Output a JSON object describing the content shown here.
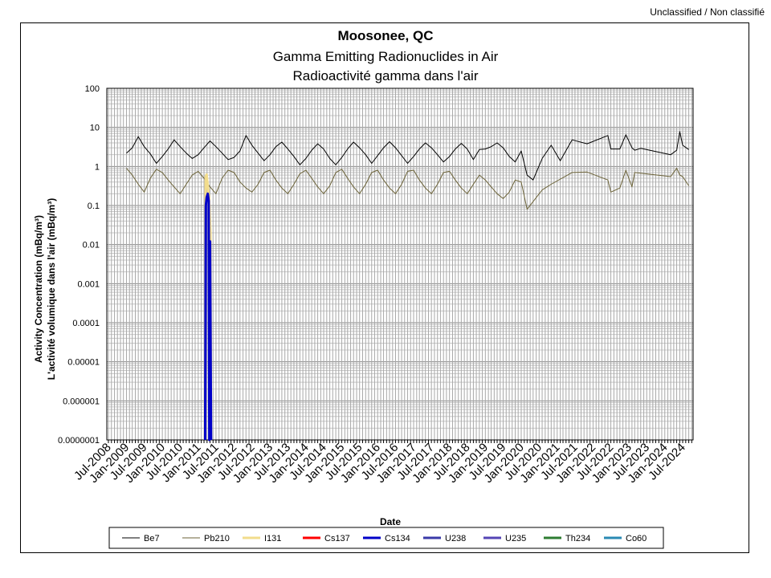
{
  "header": {
    "classification": "Unclassified / Non classifié"
  },
  "chart_data": {
    "type": "line",
    "title": "Moosonee, QC",
    "subtitle": [
      "Gamma Emitting Radionuclides in Air",
      "Radioactivité gamma dans l'air"
    ],
    "xlabel": "Date",
    "ylabel": [
      "Activity Concentration  (mBq/m³)",
      "L'activité volumique dans l'air (mBq/m³)"
    ],
    "y_scale": "log",
    "ylim": [
      1e-07,
      100
    ],
    "y_ticks": [
      "0.0000001",
      "0.000001",
      "0.00001",
      "0.0001",
      "0.001",
      "0.01",
      "0.1",
      "1",
      "10",
      "100"
    ],
    "xlim": [
      "2008-06-15",
      "2024-10-15"
    ],
    "x_ticks": [
      "Jul-2008",
      "Jan-2009",
      "Jul-2009",
      "Jan-2010",
      "Jul-2010",
      "Jan-2011",
      "Jul-2011",
      "Jan-2012",
      "Jul-2012",
      "Jan-2013",
      "Jul-2013",
      "Jan-2014",
      "Jul-2014",
      "Jan-2015",
      "Jul-2015",
      "Jan-2016",
      "Jul-2016",
      "Jan-2017",
      "Jul-2017",
      "Jan-2018",
      "Jul-2018",
      "Jan-2019",
      "Jul-2019",
      "Jan-2020",
      "Jul-2020",
      "Jan-2021",
      "Jul-2021",
      "Jan-2022",
      "Jul-2022",
      "Jan-2023",
      "Jul-2023",
      "Jan-2024",
      "Jul-2024"
    ],
    "x_tick_dates": [
      "2008-07-01",
      "2009-01-01",
      "2009-07-01",
      "2010-01-01",
      "2010-07-01",
      "2011-01-01",
      "2011-07-01",
      "2012-01-01",
      "2012-07-01",
      "2013-01-01",
      "2013-07-01",
      "2014-01-01",
      "2014-07-01",
      "2015-01-01",
      "2015-07-01",
      "2016-01-01",
      "2016-07-01",
      "2017-01-01",
      "2017-07-01",
      "2018-01-01",
      "2018-07-01",
      "2019-01-01",
      "2019-07-01",
      "2020-01-01",
      "2020-07-01",
      "2021-01-01",
      "2021-07-01",
      "2022-01-01",
      "2022-07-01",
      "2023-01-01",
      "2023-07-01",
      "2024-01-01",
      "2024-07-01"
    ],
    "grid": true,
    "legend_position": "bottom",
    "series": [
      {
        "name": "Be7",
        "color": "#000000",
        "values": [
          [
            "2009-01-01",
            2.2
          ],
          [
            "2009-03-01",
            3.0
          ],
          [
            "2009-05-01",
            5.8
          ],
          [
            "2009-07-01",
            3.2
          ],
          [
            "2009-09-01",
            2.1
          ],
          [
            "2009-11-01",
            1.2
          ],
          [
            "2010-01-01",
            1.8
          ],
          [
            "2010-03-01",
            2.8
          ],
          [
            "2010-05-01",
            4.8
          ],
          [
            "2010-07-01",
            3.2
          ],
          [
            "2010-09-01",
            2.2
          ],
          [
            "2010-11-01",
            1.6
          ],
          [
            "2011-01-01",
            2.0
          ],
          [
            "2011-03-01",
            3.0
          ],
          [
            "2011-05-01",
            4.5
          ],
          [
            "2011-07-01",
            3.2
          ],
          [
            "2011-09-01",
            2.2
          ],
          [
            "2011-11-01",
            1.5
          ],
          [
            "2012-01-01",
            1.7
          ],
          [
            "2012-03-01",
            2.5
          ],
          [
            "2012-05-01",
            6.2
          ],
          [
            "2012-07-01",
            3.5
          ],
          [
            "2012-09-01",
            2.2
          ],
          [
            "2012-11-01",
            1.4
          ],
          [
            "2013-01-01",
            2.0
          ],
          [
            "2013-03-01",
            3.2
          ],
          [
            "2013-05-01",
            4.2
          ],
          [
            "2013-07-01",
            2.8
          ],
          [
            "2013-09-01",
            1.8
          ],
          [
            "2013-11-01",
            1.1
          ],
          [
            "2014-01-01",
            1.6
          ],
          [
            "2014-03-01",
            2.6
          ],
          [
            "2014-05-01",
            3.8
          ],
          [
            "2014-07-01",
            2.8
          ],
          [
            "2014-09-01",
            1.6
          ],
          [
            "2014-11-01",
            1.1
          ],
          [
            "2015-01-01",
            1.7
          ],
          [
            "2015-03-01",
            2.8
          ],
          [
            "2015-05-01",
            4.2
          ],
          [
            "2015-07-01",
            3.0
          ],
          [
            "2015-09-01",
            2.0
          ],
          [
            "2015-11-01",
            1.2
          ],
          [
            "2016-01-01",
            1.9
          ],
          [
            "2016-03-01",
            3.0
          ],
          [
            "2016-05-01",
            4.3
          ],
          [
            "2016-07-01",
            3.0
          ],
          [
            "2016-09-01",
            1.9
          ],
          [
            "2016-11-01",
            1.2
          ],
          [
            "2017-01-01",
            1.8
          ],
          [
            "2017-03-01",
            2.8
          ],
          [
            "2017-05-01",
            4.0
          ],
          [
            "2017-07-01",
            3.0
          ],
          [
            "2017-09-01",
            2.0
          ],
          [
            "2017-11-01",
            1.3
          ],
          [
            "2018-01-01",
            1.8
          ],
          [
            "2018-03-01",
            2.8
          ],
          [
            "2018-05-01",
            3.9
          ],
          [
            "2018-07-01",
            2.8
          ],
          [
            "2018-09-01",
            1.5
          ],
          [
            "2018-11-01",
            2.7
          ],
          [
            "2019-01-01",
            2.8
          ],
          [
            "2019-03-01",
            3.2
          ],
          [
            "2019-05-01",
            4.0
          ],
          [
            "2019-07-01",
            3.0
          ],
          [
            "2019-09-01",
            1.8
          ],
          [
            "2019-11-01",
            1.3
          ],
          [
            "2020-01-01",
            2.5
          ],
          [
            "2020-03-01",
            0.6
          ],
          [
            "2020-05-01",
            0.45
          ],
          [
            "2020-08-01",
            1.6
          ],
          [
            "2020-11-01",
            3.5
          ],
          [
            "2021-02-01",
            1.4
          ],
          [
            "2021-06-01",
            4.8
          ],
          [
            "2021-11-01",
            3.8
          ],
          [
            "2022-06-01",
            6.2
          ],
          [
            "2022-07-01",
            2.8
          ],
          [
            "2022-10-01",
            2.8
          ],
          [
            "2022-12-01",
            6.5
          ],
          [
            "2023-02-01",
            3.0
          ],
          [
            "2023-03-01",
            2.6
          ],
          [
            "2023-05-01",
            2.9
          ],
          [
            "2024-03-01",
            2.0
          ],
          [
            "2024-05-01",
            2.6
          ],
          [
            "2024-06-01",
            7.8
          ],
          [
            "2024-07-01",
            3.5
          ],
          [
            "2024-09-01",
            2.7
          ]
        ]
      },
      {
        "name": "Pb210",
        "color": "#6b6237",
        "values": [
          [
            "2009-01-01",
            0.9
          ],
          [
            "2009-03-01",
            0.6
          ],
          [
            "2009-05-01",
            0.35
          ],
          [
            "2009-07-01",
            0.22
          ],
          [
            "2009-09-01",
            0.5
          ],
          [
            "2009-11-01",
            0.85
          ],
          [
            "2010-01-01",
            0.7
          ],
          [
            "2010-03-01",
            0.45
          ],
          [
            "2010-05-01",
            0.3
          ],
          [
            "2010-07-01",
            0.2
          ],
          [
            "2010-09-01",
            0.35
          ],
          [
            "2010-11-01",
            0.6
          ],
          [
            "2011-01-01",
            0.75
          ],
          [
            "2011-03-01",
            0.5
          ],
          [
            "2011-05-01",
            0.3
          ],
          [
            "2011-07-01",
            0.2
          ],
          [
            "2011-09-01",
            0.5
          ],
          [
            "2011-11-01",
            0.8
          ],
          [
            "2012-01-01",
            0.7
          ],
          [
            "2012-03-01",
            0.4
          ],
          [
            "2012-05-01",
            0.28
          ],
          [
            "2012-07-01",
            0.22
          ],
          [
            "2012-09-01",
            0.35
          ],
          [
            "2012-11-01",
            0.7
          ],
          [
            "2013-01-01",
            0.8
          ],
          [
            "2013-03-01",
            0.45
          ],
          [
            "2013-05-01",
            0.28
          ],
          [
            "2013-07-01",
            0.2
          ],
          [
            "2013-09-01",
            0.35
          ],
          [
            "2013-11-01",
            0.65
          ],
          [
            "2014-01-01",
            0.8
          ],
          [
            "2014-03-01",
            0.5
          ],
          [
            "2014-05-01",
            0.3
          ],
          [
            "2014-07-01",
            0.2
          ],
          [
            "2014-09-01",
            0.32
          ],
          [
            "2014-11-01",
            0.7
          ],
          [
            "2015-01-01",
            0.85
          ],
          [
            "2015-03-01",
            0.5
          ],
          [
            "2015-05-01",
            0.3
          ],
          [
            "2015-07-01",
            0.2
          ],
          [
            "2015-09-01",
            0.35
          ],
          [
            "2015-11-01",
            0.7
          ],
          [
            "2016-01-01",
            0.8
          ],
          [
            "2016-03-01",
            0.45
          ],
          [
            "2016-05-01",
            0.28
          ],
          [
            "2016-07-01",
            0.2
          ],
          [
            "2016-09-01",
            0.35
          ],
          [
            "2016-11-01",
            0.75
          ],
          [
            "2017-01-01",
            0.8
          ],
          [
            "2017-03-01",
            0.45
          ],
          [
            "2017-05-01",
            0.28
          ],
          [
            "2017-07-01",
            0.2
          ],
          [
            "2017-09-01",
            0.35
          ],
          [
            "2017-11-01",
            0.7
          ],
          [
            "2018-01-01",
            0.75
          ],
          [
            "2018-03-01",
            0.45
          ],
          [
            "2018-05-01",
            0.28
          ],
          [
            "2018-07-01",
            0.2
          ],
          [
            "2018-09-01",
            0.35
          ],
          [
            "2018-11-01",
            0.6
          ],
          [
            "2019-01-01",
            0.45
          ],
          [
            "2019-03-01",
            0.3
          ],
          [
            "2019-05-01",
            0.2
          ],
          [
            "2019-07-01",
            0.15
          ],
          [
            "2019-09-01",
            0.22
          ],
          [
            "2019-11-01",
            0.45
          ],
          [
            "2020-01-01",
            0.4
          ],
          [
            "2020-03-01",
            0.08
          ],
          [
            "2020-08-01",
            0.25
          ],
          [
            "2020-11-01",
            0.35
          ],
          [
            "2021-06-01",
            0.7
          ],
          [
            "2021-11-01",
            0.72
          ],
          [
            "2022-06-01",
            0.45
          ],
          [
            "2022-07-01",
            0.22
          ],
          [
            "2022-10-01",
            0.28
          ],
          [
            "2022-12-01",
            0.8
          ],
          [
            "2023-02-01",
            0.3
          ],
          [
            "2023-03-01",
            0.7
          ],
          [
            "2024-03-01",
            0.55
          ],
          [
            "2024-05-01",
            0.9
          ],
          [
            "2024-06-01",
            0.6
          ],
          [
            "2024-07-01",
            0.55
          ],
          [
            "2024-09-01",
            0.32
          ]
        ]
      },
      {
        "name": "I131",
        "color": "#f2dc8c",
        "values": [
          [
            "2011-03-10",
            1e-07
          ],
          [
            "2011-03-18",
            0.55
          ],
          [
            "2011-03-28",
            0.62
          ],
          [
            "2011-04-10",
            0.3
          ],
          [
            "2011-04-22",
            0.14
          ],
          [
            "2011-05-05",
            0.02
          ],
          [
            "2011-05-10",
            1e-07
          ]
        ]
      },
      {
        "name": "Cs137",
        "color": "#ff0000",
        "values": []
      },
      {
        "name": "Cs134",
        "color": "#0000c8",
        "values": [
          [
            "2011-03-12",
            1e-07
          ],
          [
            "2011-03-20",
            0.1
          ],
          [
            "2011-03-28",
            0.16
          ],
          [
            "2011-04-08",
            0.2
          ],
          [
            "2011-04-18",
            0.13
          ],
          [
            "2011-04-24",
            1e-07
          ],
          [
            "2011-05-02",
            0.012
          ],
          [
            "2011-05-12",
            1e-07
          ]
        ]
      },
      {
        "name": "U238",
        "color": "#3a3aa8",
        "values": []
      },
      {
        "name": "U235",
        "color": "#5545b5",
        "values": []
      },
      {
        "name": "Th234",
        "color": "#2e7d32",
        "values": []
      },
      {
        "name": "Co60",
        "color": "#2a8ab3",
        "values": []
      }
    ]
  }
}
